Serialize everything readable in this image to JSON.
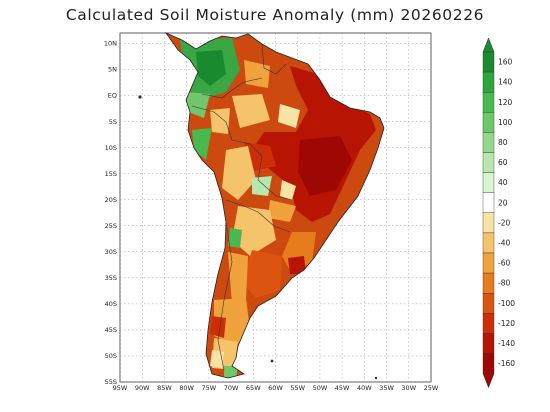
{
  "title": "Calculated Soil Moisture Anomaly (mm) 20260226",
  "map": {
    "lat_labels": [
      "10N",
      "5N",
      "EQ",
      "5S",
      "10S",
      "15S",
      "20S",
      "25S",
      "30S",
      "35S",
      "40S",
      "45S",
      "50S",
      "55S"
    ],
    "lon_labels": [
      "95W",
      "90W",
      "85W",
      "80W",
      "75W",
      "70W",
      "65W",
      "60W",
      "55W",
      "50W",
      "45W",
      "40W",
      "35W",
      "30W",
      "25W"
    ],
    "lon_range": [
      -95,
      -25
    ],
    "lat_range": [
      -55,
      12
    ]
  },
  "colorbar": {
    "levels": [
      "160",
      "140",
      "120",
      "100",
      "80",
      "60",
      "40",
      "20",
      "-20",
      "-40",
      "-60",
      "-80",
      "-100",
      "-120",
      "-140",
      "-160"
    ],
    "colors": [
      "#1a8a2e",
      "#2ea63c",
      "#48b84f",
      "#6cc96a",
      "#92d98c",
      "#b6e8ae",
      "#d9f4d2",
      "#ffffff",
      "#f8e3a6",
      "#f5c36a",
      "#f0a33c",
      "#e77c1c",
      "#db5410",
      "#cc2f08",
      "#b81404",
      "#9e0703"
    ]
  }
}
